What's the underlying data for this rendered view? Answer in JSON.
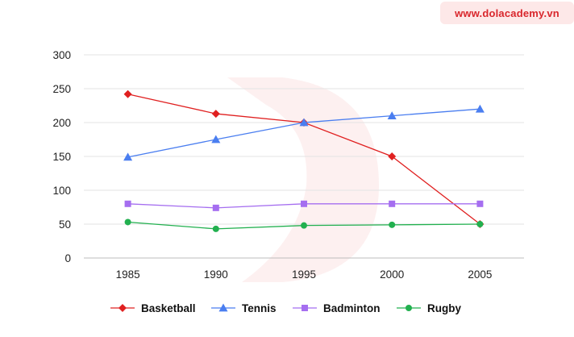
{
  "watermark": {
    "text": "www.dolacademy.vn",
    "color": "#d9262c"
  },
  "chart_data": {
    "type": "line",
    "title": "",
    "xlabel": "",
    "ylabel": "",
    "categories": [
      "1985",
      "1990",
      "1995",
      "2000",
      "2005"
    ],
    "ylim": [
      0,
      300
    ],
    "yticks": [
      "0",
      "50",
      "100",
      "150",
      "200",
      "250",
      "300"
    ],
    "grid": true,
    "legend": "bottom",
    "series": [
      {
        "name": "Basketball",
        "color": "#e02020",
        "marker": "diamond",
        "values": [
          242,
          213,
          200,
          150,
          50
        ]
      },
      {
        "name": "Tennis",
        "color": "#4a7ef0",
        "marker": "triangle",
        "values": [
          149,
          175,
          200,
          210,
          220
        ]
      },
      {
        "name": "Badminton",
        "color": "#a56ef0",
        "marker": "square",
        "values": [
          80,
          74,
          80,
          80,
          80
        ]
      },
      {
        "name": "Rugby",
        "color": "#22b04f",
        "marker": "circle",
        "values": [
          53,
          43,
          48,
          49,
          50
        ]
      }
    ]
  }
}
